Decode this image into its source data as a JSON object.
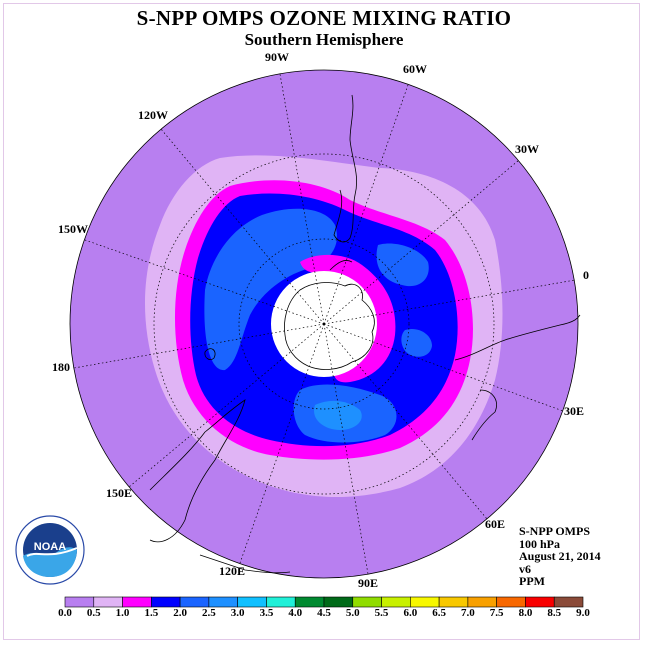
{
  "title": "S-NPP OMPS OZONE MIXING RATIO",
  "subtitle": "Southern Hemisphere",
  "longitude_labels": [
    "90W",
    "60W",
    "30W",
    "0",
    "30E",
    "60E",
    "90E",
    "120E",
    "150E",
    "180",
    "150W",
    "120W"
  ],
  "info": {
    "instrument": "S-NPP OMPS",
    "level": "100 hPa",
    "date": "August 21, 2014",
    "version": "v6",
    "units": "PPM"
  },
  "logo": {
    "text": "NOAA"
  },
  "colorbar": {
    "ticks": [
      "0.0",
      "0.5",
      "1.0",
      "1.5",
      "2.0",
      "2.5",
      "3.0",
      "3.5",
      "4.0",
      "4.5",
      "5.0",
      "5.5",
      "6.0",
      "6.5",
      "7.0",
      "7.5",
      "8.0",
      "8.5",
      "9.0"
    ],
    "colors": [
      "#b87ff0",
      "#e0b4f5",
      "#ff00ff",
      "#0000ff",
      "#1a64ff",
      "#1e90ff",
      "#10c0ff",
      "#20f0d8",
      "#008a30",
      "#006a18",
      "#90dc00",
      "#c8f000",
      "#f8f800",
      "#f8c800",
      "#f8a000",
      "#f86800",
      "#f80000",
      "#8a4a38"
    ]
  }
}
